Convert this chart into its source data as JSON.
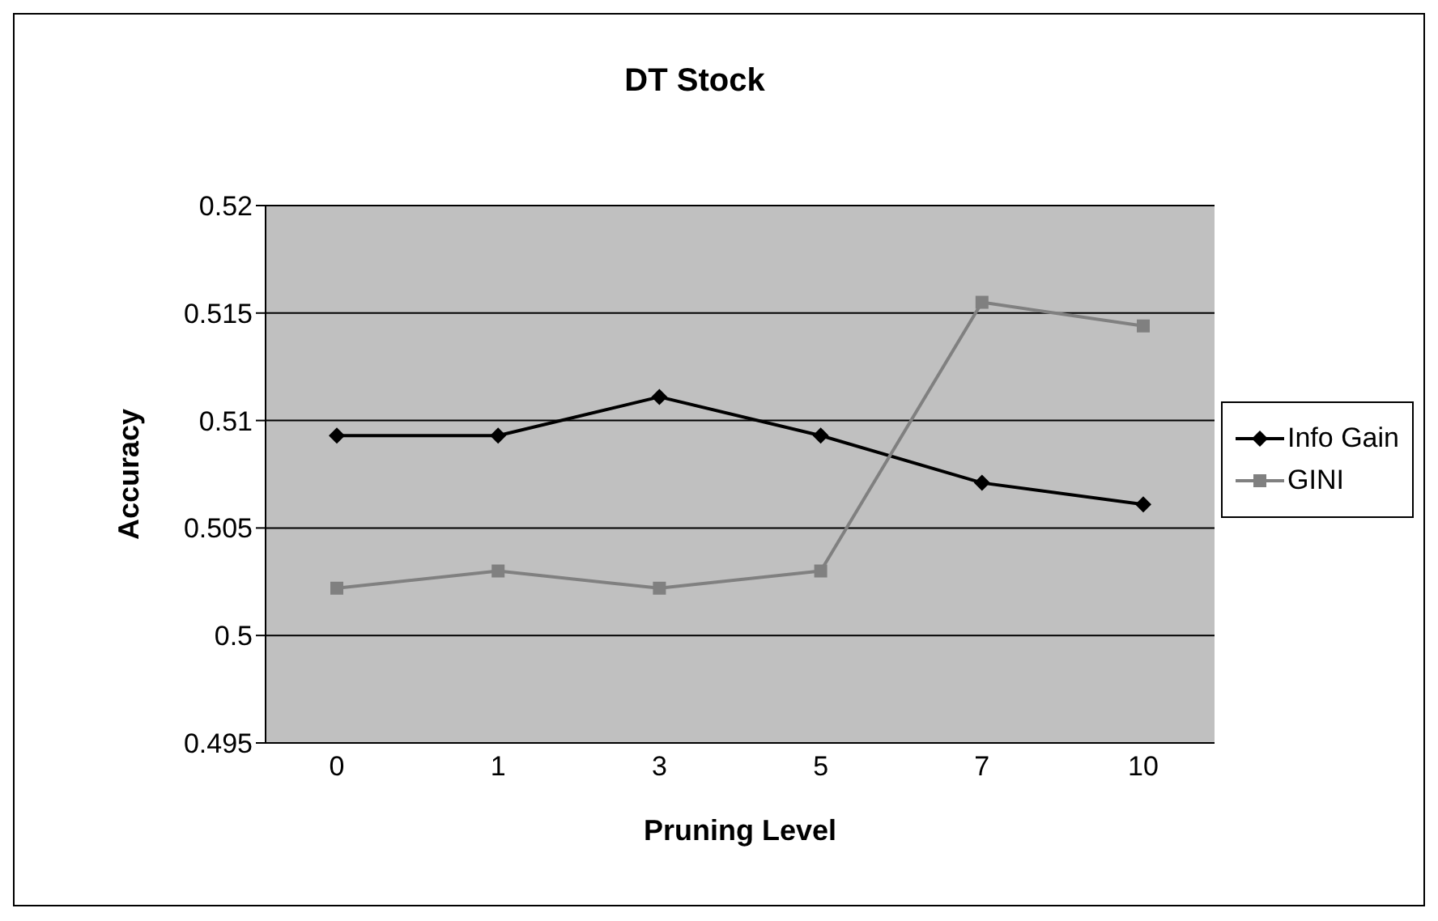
{
  "chart_data": {
    "type": "line",
    "title": "DT Stock",
    "xlabel": "Pruning Level",
    "ylabel": "Accuracy",
    "categories": [
      "0",
      "1",
      "3",
      "5",
      "7",
      "10"
    ],
    "series": [
      {
        "name": "Info Gain",
        "color": "#000000",
        "marker": "diamond",
        "values": [
          0.5093,
          0.5093,
          0.5111,
          0.5093,
          0.5071,
          0.5061
        ]
      },
      {
        "name": "GINI",
        "color": "#808080",
        "marker": "square",
        "values": [
          0.5022,
          0.503,
          0.5022,
          0.503,
          0.5155,
          0.5144
        ]
      }
    ],
    "ylim": [
      0.495,
      0.52
    ],
    "yticks": [
      0.495,
      0.5,
      0.505,
      0.51,
      0.515,
      0.52
    ],
    "grid": "y",
    "legend": "right"
  }
}
